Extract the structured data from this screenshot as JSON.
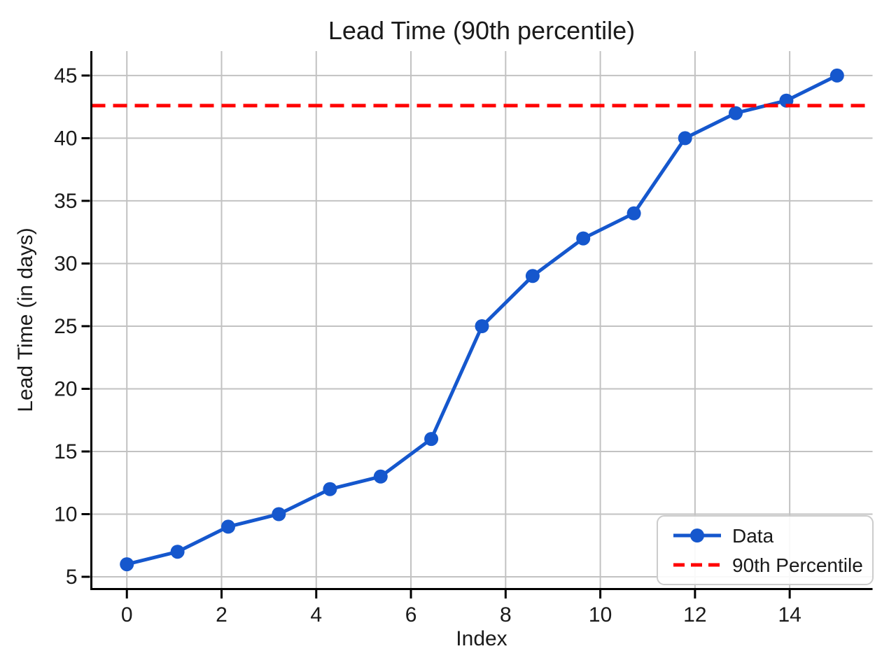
{
  "chart_data": {
    "type": "line",
    "title": "Lead Time (90th percentile)",
    "xlabel": "Index",
    "ylabel": "Lead Time (in days)",
    "x_ticks": [
      0,
      2,
      4,
      6,
      8,
      10,
      12,
      14
    ],
    "y_ticks": [
      5,
      10,
      15,
      20,
      25,
      30,
      35,
      40,
      45
    ],
    "xlim": [
      -0.75,
      15.75
    ],
    "ylim": [
      4.05,
      46.95
    ],
    "grid": true,
    "legend_position": "lower right",
    "series": [
      {
        "name": "Data",
        "type": "line_markers",
        "color": "#1557CD",
        "x": [
          0,
          1.07,
          2.14,
          3.21,
          4.29,
          5.36,
          6.43,
          7.5,
          8.57,
          9.64,
          10.71,
          11.79,
          12.86,
          13.93,
          15
        ],
        "y": [
          6,
          7,
          9,
          10,
          12,
          13,
          16,
          25,
          29,
          32,
          34,
          40,
          42,
          43,
          45
        ]
      },
      {
        "name": "90th Percentile",
        "type": "horizontal_dashed_line",
        "color": "#FF0000",
        "value": 42.6
      }
    ],
    "style": {
      "grid_color": "#c2c2c2",
      "spine_color": "#000000",
      "text_color": "#1a1a1a",
      "legend_border_color": "#cccccc",
      "legend_background": "#ffffff"
    }
  }
}
